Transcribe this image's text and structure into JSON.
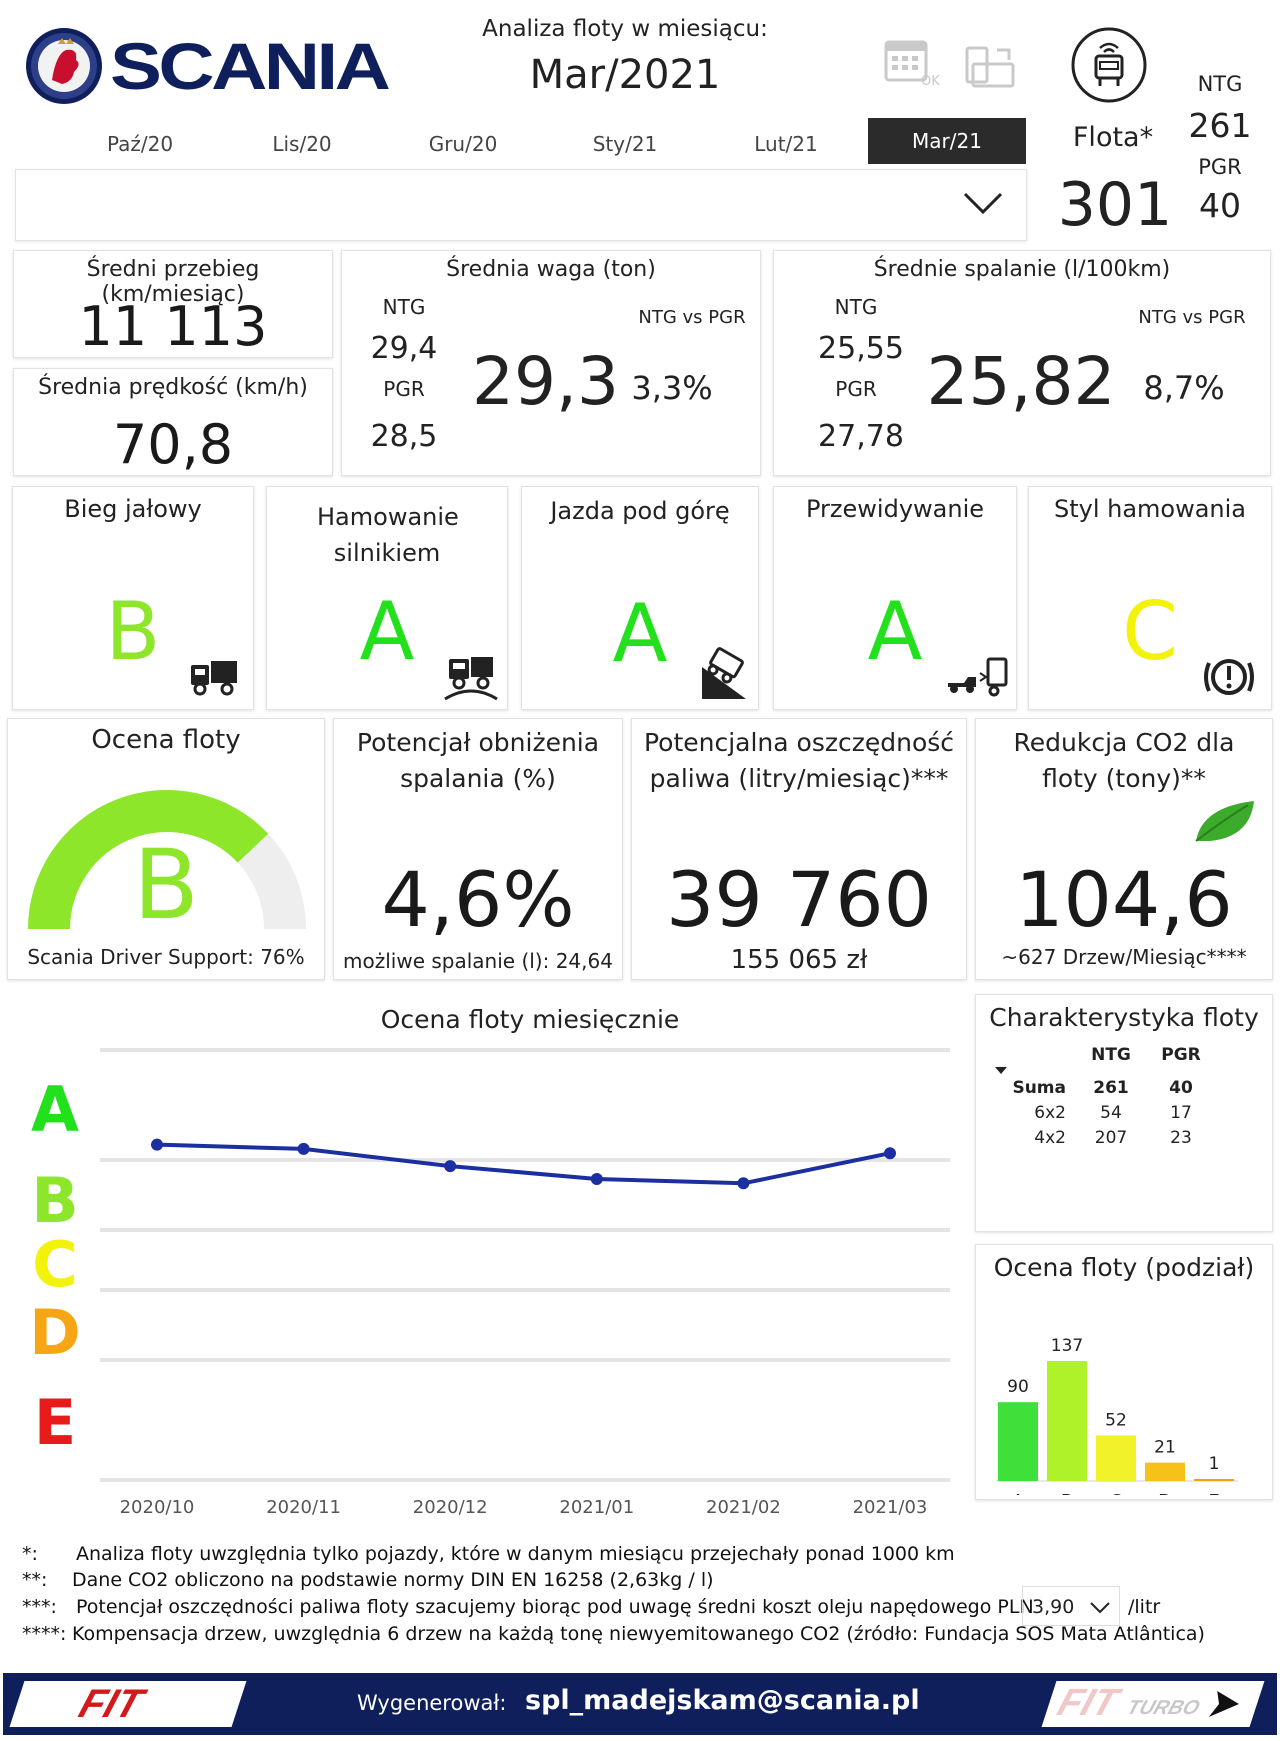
{
  "header": {
    "brand": "SCANIA",
    "analysis_title": "Analiza floty w miesiącu:",
    "selected_month": "Mar/2021",
    "months": [
      "Paź/20",
      "Lis/20",
      "Gru/20",
      "Sty/21",
      "Lut/21",
      "Mar/21"
    ],
    "active_month_index": 5,
    "calendar_ok": "OK",
    "fleet_label": "Flota*",
    "fleet_total": "301",
    "ntg_label": "NTG",
    "ntg_count": "261",
    "pgr_label": "PGR",
    "pgr_count": "40"
  },
  "kpi": {
    "mileage": {
      "title": "Średni przebieg (km/miesiąc)",
      "value": "11 113"
    },
    "speed": {
      "title": "Średnia prędkość (km/h)",
      "value": "70,8"
    },
    "weight": {
      "title": "Średnia waga (ton)",
      "ntg_label": "NTG",
      "ntg": "29,4",
      "pgr_label": "PGR",
      "pgr": "28,5",
      "value": "29,3",
      "cmp_label": "NTG vs PGR",
      "cmp": "3,3%"
    },
    "fuel": {
      "title": "Średnie spalanie (l/100km)",
      "ntg_label": "NTG",
      "ntg": "25,55",
      "pgr_label": "PGR",
      "pgr": "27,78",
      "value": "25,82",
      "cmp_label": "NTG vs PGR",
      "cmp": "8,7%"
    }
  },
  "scores": [
    {
      "title": "Bieg jałowy",
      "grade": "B",
      "color": "#8ee62b",
      "icon": "truck-idle-icon"
    },
    {
      "title": "Hamowanie silnikiem",
      "grade": "A",
      "color": "#22e01b",
      "icon": "truck-engine-brake-icon"
    },
    {
      "title": "Jazda pod górę",
      "grade": "A",
      "color": "#22e01b",
      "icon": "truck-uphill-icon"
    },
    {
      "title": "Przewidywanie",
      "grade": "A",
      "color": "#22e01b",
      "icon": "truck-anticipation-icon"
    },
    {
      "title": "Styl hamowania",
      "grade": "C",
      "color": "#f2f20a",
      "icon": "brake-warning-icon"
    }
  ],
  "summary": {
    "rating": {
      "title": "Ocena floty",
      "grade": "B",
      "gauge_percent": 76,
      "caption": "Scania Driver Support: 76%"
    },
    "potential": {
      "title": "Potencjał obniżenia spalania (%)",
      "value": "4,6%",
      "caption": "możliwe spalanie (l): 24,64"
    },
    "savings": {
      "title": "Potencjalna oszczędność paliwa (litry/miesiąc)***",
      "value": "39 760",
      "caption": "155 065 zł"
    },
    "co2": {
      "title": "Redukcja CO2 dla floty (tony)**",
      "value": "104,6",
      "caption": "~627 Drzew/Miesiąc****"
    }
  },
  "chart_data": [
    {
      "type": "line",
      "title": "Ocena floty miesięcznie",
      "categories": [
        "2020/10",
        "2020/11",
        "2020/12",
        "2021/01",
        "2021/02",
        "2021/03"
      ],
      "y_grades": [
        "A",
        "B",
        "C",
        "D",
        "E"
      ],
      "grade_colors": [
        "#22e01b",
        "#8ee62b",
        "#f2f20a",
        "#f6a614",
        "#e81b1b"
      ],
      "values": [
        0.78,
        0.77,
        0.73,
        0.7,
        0.69,
        0.76
      ],
      "series_color": "#1b2fa0"
    },
    {
      "type": "bar",
      "title": "Ocena floty (podział)",
      "categories": [
        "A",
        "B",
        "C",
        "D",
        "E"
      ],
      "values": [
        90,
        137,
        52,
        21,
        1
      ],
      "colors": [
        "#3fe03a",
        "#b0f22a",
        "#f2f22a",
        "#f6c21a",
        "#f6a014"
      ]
    }
  ],
  "characteristics": {
    "title": "Charakterystyka floty",
    "col_ntg": "NTG",
    "col_pgr": "PGR",
    "rows": [
      {
        "label": "Suma",
        "ntg": "261",
        "pgr": "40",
        "bold": true
      },
      {
        "label": "6x2",
        "ntg": "54",
        "pgr": "17",
        "bold": false
      },
      {
        "label": "4x2",
        "ntg": "207",
        "pgr": "23",
        "bold": false
      }
    ]
  },
  "footnotes": {
    "n1_mark": "*:",
    "n1": "Analiza floty uwzględnia tylko pojazdy, które w danym miesiącu przejechały ponad 1000 km",
    "n2_mark": "**:",
    "n2": "Dane CO2 obliczono na podstawie normy DIN EN 16258 (2,63kg / l)",
    "n3_mark": "***:",
    "n3": "Potencjał oszczędności paliwa floty szacujemy biorąc pod uwagę średni koszt oleju napędowego PLN",
    "n3_price": "3,90",
    "n3_unit": "/litr",
    "n4_mark": "****:",
    "n4": "Kompensacja drzew, uwzględnia 6 drzew na każdą tonę niewyemitowanego CO2 (źródło: Fundacja SOS Mata Atlântica)"
  },
  "footer": {
    "left_logo": "FIT",
    "generated_label": "Wygenerował:",
    "email": "spl_madejskam@scania.pl",
    "right_logo": "FIT",
    "right_logo_sub": "TURBO"
  }
}
